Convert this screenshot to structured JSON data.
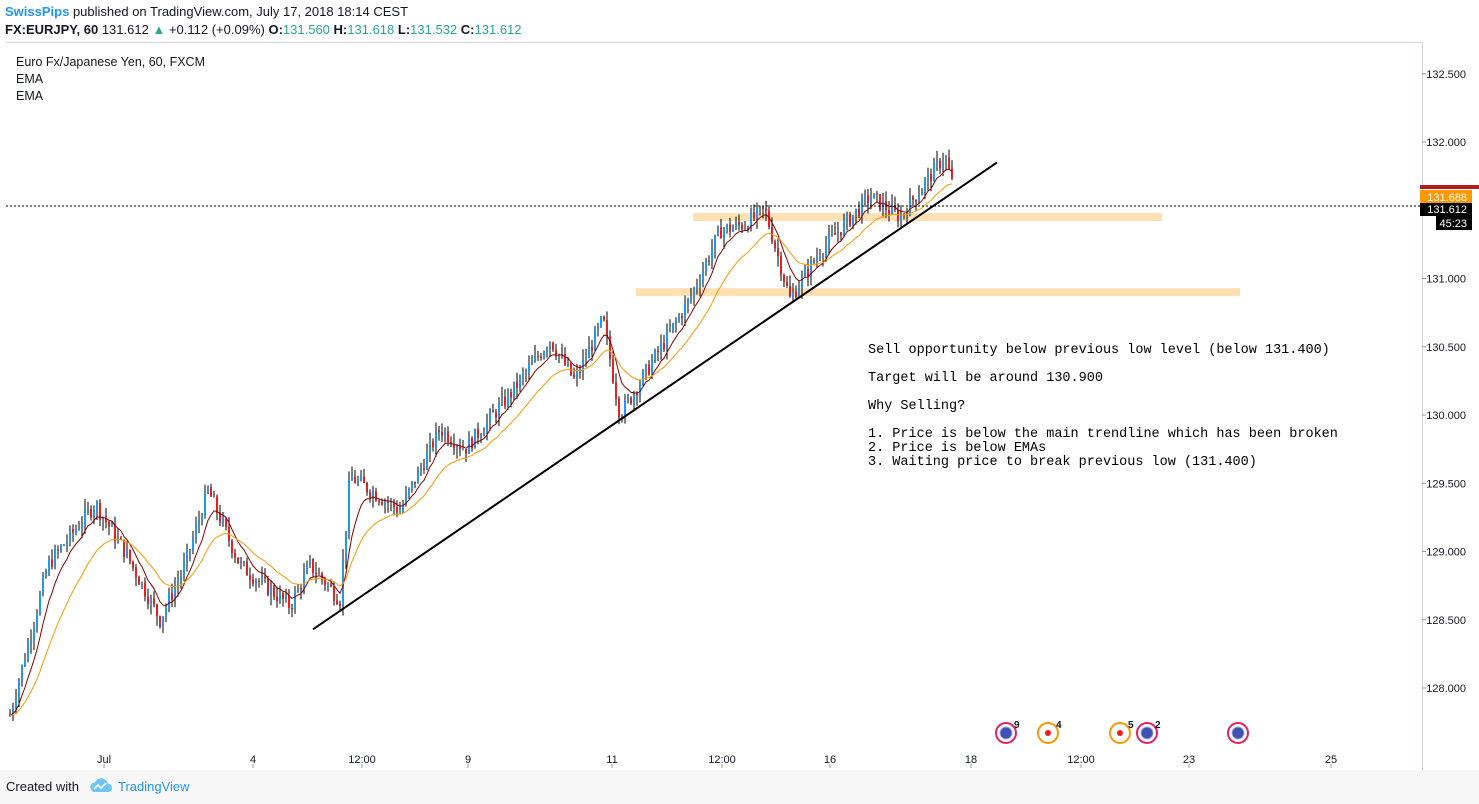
{
  "header": {
    "author": "SwissPips",
    "published": "published on TradingView.com, July 17, 2018 18:14 CEST",
    "symbol": "FX:EURJPY, 60",
    "last": "131.612",
    "change": "+0.112 (+0.09%)",
    "open_label": "O:",
    "open": "131.560",
    "high_label": "H:",
    "high": "131.618",
    "low_label": "L:",
    "low": "131.532",
    "close_label": "C:",
    "close": "131.612"
  },
  "legend": {
    "title": "Euro Fx/Japanese Yen, 60, FXCM",
    "ind1": "EMA",
    "ind2": "EMA"
  },
  "annotation": {
    "line1": "Sell opportunity below previous low level (below 131.400)",
    "line2": "Target will be around 130.900",
    "line3": "Why Selling?",
    "line4": "1. Price is below the main trendline which has been broken",
    "line5": "2. Price is below EMAs",
    "line6": "3. Waiting price to break previous low (131.400)"
  },
  "price_labels": {
    "ema_value": "131.688",
    "current_price": "131.612",
    "countdown": "45:23"
  },
  "events": [
    {
      "count": "9"
    },
    {
      "count": "4"
    },
    {
      "count": "5"
    },
    {
      "count": "2"
    },
    {
      "count": ""
    }
  ],
  "footer": {
    "created": "Created with",
    "brand": "TradingView"
  },
  "colors": {
    "up": "#2196f3",
    "down": "#e91e1e",
    "ema_fast": "#8b0000",
    "ema_slow": "#ff9800",
    "zone": "#ffe0b2",
    "trendline": "#000000"
  },
  "chart_data": {
    "type": "candlestick",
    "title": "Euro Fx/Japanese Yen, 60, FXCM",
    "ylim": [
      127.65,
      132.55
    ],
    "y_ticks": [
      "132.500",
      "132.000",
      "131.500",
      "131.000",
      "130.500",
      "130.000",
      "129.500",
      "129.000",
      "128.500",
      "128.000"
    ],
    "x_ticks": [
      "Jul",
      "4",
      "12:00",
      "9",
      "11",
      "12:00",
      "16",
      "18",
      "12:00",
      "23",
      "25"
    ],
    "price_path": [
      {
        "t": "Jul 2 start",
        "p": 127.8
      },
      {
        "t": "Jul 2",
        "p": 128.9
      },
      {
        "t": "Jul 2",
        "p": 129.35
      },
      {
        "t": "Jul 3",
        "p": 129.0
      },
      {
        "t": "Jul 3",
        "p": 128.5
      },
      {
        "t": "Jul 3",
        "p": 128.9
      },
      {
        "t": "Jul 3",
        "p": 129.45
      },
      {
        "t": "Jul 4",
        "p": 128.9
      },
      {
        "t": "Jul 5",
        "p": 128.6
      },
      {
        "t": "Jul 6",
        "p": 128.9
      },
      {
        "t": "Jul 6",
        "p": 128.65
      },
      {
        "t": "Jul 6 12:00",
        "p": 129.55
      },
      {
        "t": "Jul 6",
        "p": 129.3
      },
      {
        "t": "Jul 9",
        "p": 129.9
      },
      {
        "t": "Jul 9",
        "p": 129.75
      },
      {
        "t": "Jul 10",
        "p": 130.15
      },
      {
        "t": "Jul 10",
        "p": 130.55
      },
      {
        "t": "Jul 10",
        "p": 130.25
      },
      {
        "t": "Jul 10",
        "p": 130.7
      },
      {
        "t": "Jul 11",
        "p": 130.0
      },
      {
        "t": "Jul 11",
        "p": 130.3
      },
      {
        "t": "Jul 12",
        "p": 130.85
      },
      {
        "t": "Jul 12",
        "p": 131.35
      },
      {
        "t": "Jul 12 12:00",
        "p": 131.4
      },
      {
        "t": "Jul 13",
        "p": 131.5
      },
      {
        "t": "Jul 13",
        "p": 130.85
      },
      {
        "t": "Jul 16",
        "p": 131.2
      },
      {
        "t": "Jul 16",
        "p": 131.6
      },
      {
        "t": "Jul 16",
        "p": 131.45
      },
      {
        "t": "Jul 17",
        "p": 131.9
      },
      {
        "t": "Jul 17",
        "p": 131.612
      }
    ],
    "ema_fast_label": "EMA",
    "ema_slow_label": "EMA",
    "zones": [
      {
        "price": 131.45,
        "from": "Jul 12",
        "to": "Jul 20"
      },
      {
        "price": 130.9,
        "from": "Jul 11",
        "to": "Jul 21"
      }
    ],
    "trendline": {
      "from": {
        "t": "Jul 5",
        "p": 128.43
      },
      "to": {
        "t": "Jul 18",
        "p": 131.85
      }
    },
    "current_price": 131.612
  }
}
